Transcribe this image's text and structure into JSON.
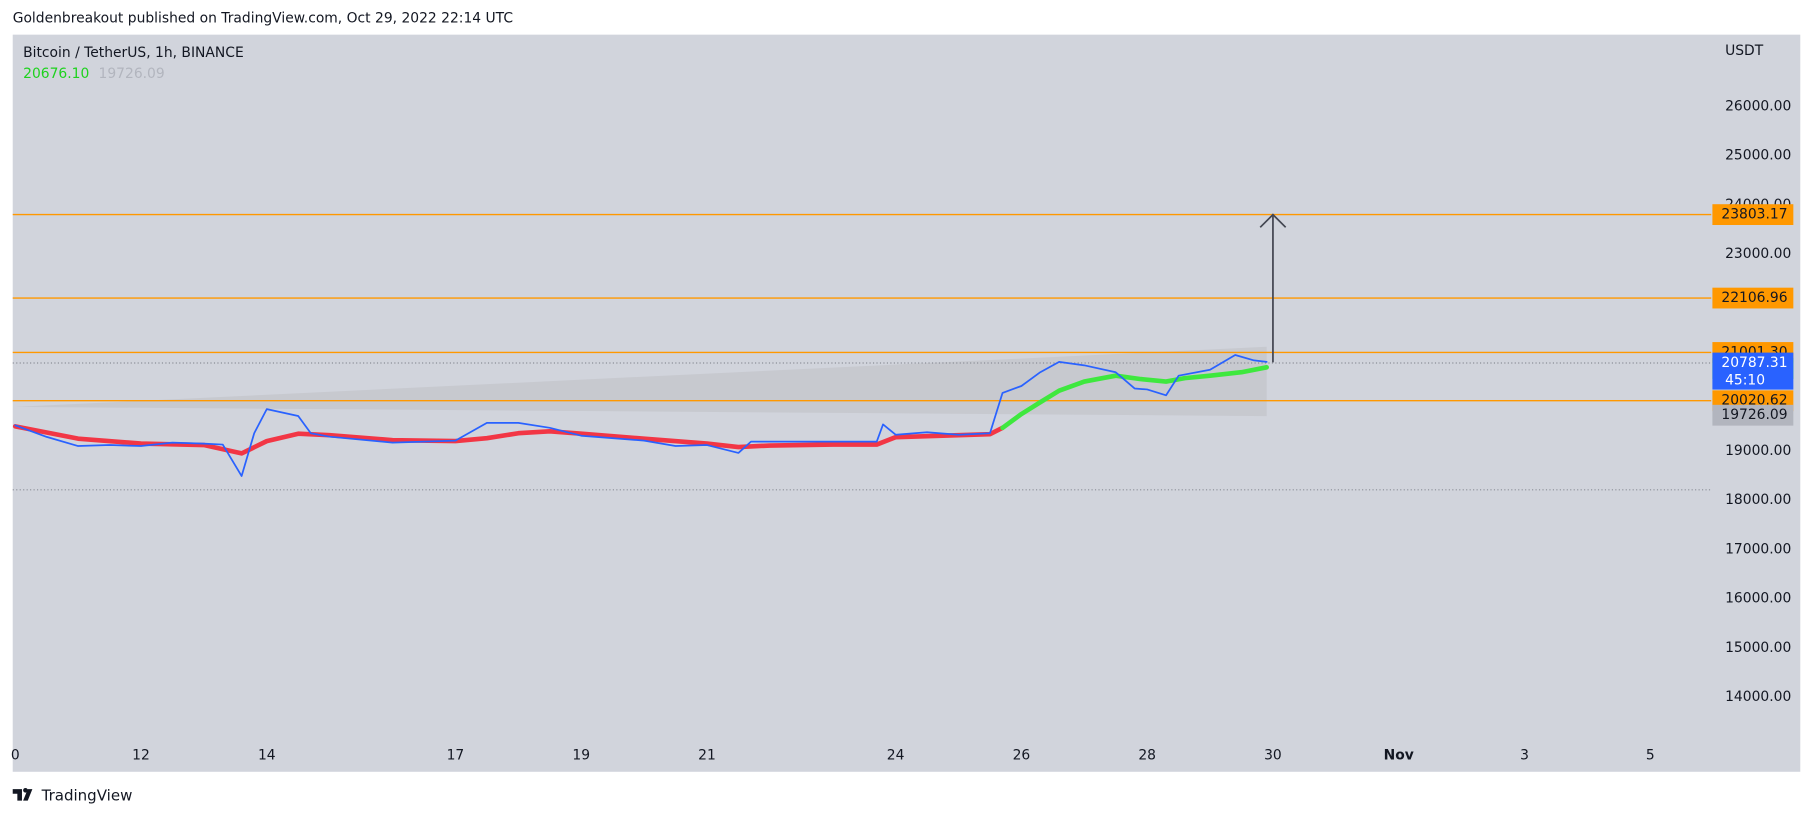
{
  "header": {
    "published": "Goldenbreakout published on TradingView.com, Oct 29, 2022 22:14 UTC"
  },
  "footer": {
    "brand": "TradingView"
  },
  "chart_data": {
    "type": "line",
    "symbol": "Bitcoin / TetherUS, 1h, BINANCE",
    "legend_values": [
      {
        "label": "20676.10",
        "color": "#1ed21e"
      },
      {
        "label": "19726.09",
        "color": "#b2b5be"
      }
    ],
    "y_unit": "USDT",
    "xlim": [
      9.96,
      36.97
    ],
    "ylim": [
      12480,
      27460
    ],
    "xticks": [
      {
        "value": 10,
        "label": "0"
      },
      12,
      14,
      17,
      19,
      21,
      24,
      26,
      28,
      30,
      {
        "value": 32,
        "label": "Nov"
      },
      {
        "value": 34,
        "label": "3"
      },
      {
        "value": 36,
        "label": "5"
      }
    ],
    "yticks": [
      {
        "value": 26000,
        "label": "26000.00"
      },
      {
        "value": 25000,
        "label": "25000.00"
      },
      {
        "value": 24000,
        "label": "24000.00"
      },
      {
        "value": 23000,
        "label": "23000.00"
      },
      {
        "value": 19000,
        "label": "19000.00"
      },
      {
        "value": 18000,
        "label": "18000.00"
      },
      {
        "value": 17000,
        "label": "17000.00"
      },
      {
        "value": 16000,
        "label": "16000.00"
      },
      {
        "value": 15000,
        "label": "15000.00"
      },
      {
        "value": 14000,
        "label": "14000.00"
      }
    ],
    "levels": [
      23803.17,
      22106.96,
      21001.3,
      20020.62
    ],
    "level_color": "#ff9800",
    "dotted_lines": [
      20787.31,
      18210
    ],
    "shaded_zone": {
      "x": [
        10,
        29.9
      ],
      "upper": [
        19896,
        21117
      ],
      "lower": [
        19896,
        19709
      ]
    },
    "arrow": {
      "x": 30,
      "from": 20800,
      "to": 23803.17
    },
    "series": [
      {
        "color": "#2962ff",
        "width": 1.5,
        "x": [
          10,
          10.5,
          11,
          11.5,
          12,
          12.5,
          13,
          13.3,
          13.6,
          13.8,
          14,
          14.5,
          14.7,
          15,
          16,
          17,
          17.5,
          18,
          18.5,
          19,
          20,
          20.5,
          21,
          21.5,
          21.7,
          22,
          23,
          23.7,
          23.8,
          24,
          24.5,
          25,
          25.5,
          25.7,
          26,
          26.3,
          26.6,
          27,
          27.5,
          27.8,
          28,
          28.3,
          28.5,
          29,
          29.4,
          29.7,
          29.9
        ],
        "values": [
          19521,
          19286,
          19100,
          19120,
          19100,
          19170,
          19150,
          19130,
          18490,
          19360,
          19850,
          19710,
          19360,
          19290,
          19170,
          19210,
          19570,
          19570,
          19470,
          19310,
          19210,
          19100,
          19120,
          18960,
          19190,
          19190,
          19190,
          19190,
          19540,
          19330,
          19380,
          19330,
          19360,
          20180,
          20320,
          20600,
          20810,
          20740,
          20600,
          20270,
          20250,
          20130,
          20530,
          20650,
          20950,
          20840,
          20810
        ]
      },
      {
        "color": "#f23645",
        "width": 4,
        "x": [
          10,
          11,
          12,
          13,
          13.6,
          14,
          14.5,
          15,
          16,
          17,
          17.5,
          18,
          18.5,
          19,
          20,
          21,
          21.5,
          22,
          23,
          23.7,
          24,
          25,
          25.5,
          25.7
        ],
        "values": [
          19500,
          19250,
          19150,
          19120,
          18950,
          19200,
          19350,
          19320,
          19220,
          19200,
          19260,
          19360,
          19400,
          19350,
          19250,
          19150,
          19080,
          19110,
          19130,
          19130,
          19280,
          19320,
          19340,
          19470
        ]
      },
      {
        "color": "#3ee83e",
        "width": 4,
        "x": [
          25.7,
          26,
          26.3,
          26.6,
          27,
          27.5,
          27.9,
          28.3,
          28.6,
          29,
          29.5,
          29.9
        ],
        "values": [
          19470,
          19750,
          19990,
          20225,
          20410,
          20530,
          20460,
          20410,
          20480,
          20530,
          20600,
          20700
        ]
      }
    ],
    "price_labels": [
      {
        "value": 23803.17,
        "label": "23803.17",
        "color": "#ff9800",
        "text_color": "#131722"
      },
      {
        "value": 22106.96,
        "label": "22106.96",
        "color": "#ff9800",
        "text_color": "#131722"
      },
      {
        "value": 21001.3,
        "label": "21001.30",
        "color": "#ff9800",
        "text_color": "#131722"
      },
      {
        "value": 20020.62,
        "label": "20020.62",
        "color": "#ff9800",
        "text_color": "#131722"
      },
      {
        "value": 20676.1,
        "label": "20676.10",
        "color": "#1ee81e",
        "text_color": "#131722"
      },
      {
        "value": 19726.09,
        "label": "19726.09",
        "color": "#b2b5be",
        "text_color": "#131722"
      },
      {
        "value": 20787.31,
        "label": "20787.31",
        "sublabel": "45:10",
        "color": "#2962ff",
        "text_color": "#ffffff"
      }
    ]
  }
}
